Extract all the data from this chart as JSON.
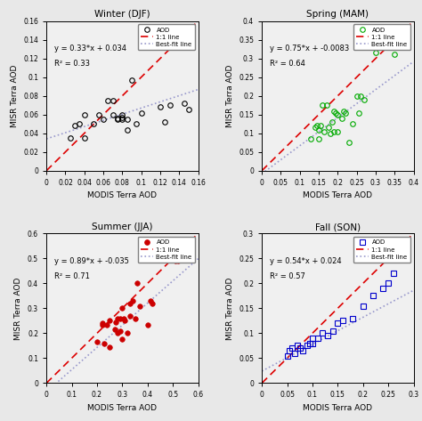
{
  "winter": {
    "title": "Winter (DJF)",
    "eq": "y = 0.33*x + 0.034",
    "r2": "R² = 0.33",
    "slope": 0.33,
    "intercept": 0.034,
    "xlim": [
      0,
      0.16
    ],
    "ylim": [
      0,
      0.16
    ],
    "xticks": [
      0,
      0.02,
      0.04,
      0.06,
      0.08,
      0.1,
      0.12,
      0.14,
      0.16
    ],
    "yticks": [
      0,
      0.02,
      0.04,
      0.06,
      0.08,
      0.1,
      0.12,
      0.14,
      0.16
    ],
    "color": "#000000",
    "marker": "o",
    "filled": false,
    "x": [
      0.025,
      0.03,
      0.035,
      0.04,
      0.04,
      0.05,
      0.055,
      0.06,
      0.065,
      0.07,
      0.07,
      0.075,
      0.075,
      0.08,
      0.08,
      0.08,
      0.085,
      0.085,
      0.09,
      0.095,
      0.1,
      0.12,
      0.125,
      0.13,
      0.145,
      0.15
    ],
    "y": [
      0.035,
      0.048,
      0.05,
      0.035,
      0.06,
      0.05,
      0.06,
      0.055,
      0.075,
      0.06,
      0.075,
      0.055,
      0.056,
      0.057,
      0.06,
      0.055,
      0.055,
      0.044,
      0.097,
      0.05,
      0.062,
      0.068,
      0.052,
      0.07,
      0.072,
      0.065
    ]
  },
  "spring": {
    "title": "Spring (MAM)",
    "eq": "y = 0.75*x + -0.0083",
    "r2": "R² = 0.64",
    "slope": 0.75,
    "intercept": -0.0083,
    "xlim": [
      0,
      0.4
    ],
    "ylim": [
      0,
      0.4
    ],
    "xticks": [
      0,
      0.05,
      0.1,
      0.15,
      0.2,
      0.25,
      0.3,
      0.35,
      0.4
    ],
    "yticks": [
      0,
      0.05,
      0.1,
      0.15,
      0.2,
      0.25,
      0.3,
      0.35,
      0.4
    ],
    "color": "#00aa00",
    "marker": "o",
    "filled": false,
    "x": [
      0.13,
      0.14,
      0.145,
      0.15,
      0.15,
      0.155,
      0.16,
      0.165,
      0.17,
      0.175,
      0.18,
      0.185,
      0.19,
      0.19,
      0.195,
      0.2,
      0.2,
      0.21,
      0.215,
      0.22,
      0.23,
      0.24,
      0.25,
      0.255,
      0.26,
      0.27,
      0.3,
      0.35
    ],
    "y": [
      0.085,
      0.115,
      0.12,
      0.085,
      0.11,
      0.12,
      0.175,
      0.105,
      0.175,
      0.115,
      0.1,
      0.13,
      0.105,
      0.16,
      0.155,
      0.105,
      0.15,
      0.14,
      0.16,
      0.155,
      0.075,
      0.125,
      0.2,
      0.155,
      0.2,
      0.19,
      0.315,
      0.31
    ]
  },
  "summer": {
    "title": "Summer (JJA)",
    "eq": "y = 0.89*x + -0.035",
    "r2": "R² = 0.71",
    "slope": 0.89,
    "intercept": -0.035,
    "xlim": [
      0,
      0.6
    ],
    "ylim": [
      0,
      0.6
    ],
    "xticks": [
      0,
      0.1,
      0.2,
      0.3,
      0.4,
      0.5,
      0.6
    ],
    "yticks": [
      0,
      0.1,
      0.2,
      0.3,
      0.4,
      0.5,
      0.6
    ],
    "color": "#cc0000",
    "marker": "o",
    "filled": true,
    "x": [
      0.2,
      0.22,
      0.22,
      0.23,
      0.24,
      0.25,
      0.25,
      0.27,
      0.275,
      0.28,
      0.28,
      0.29,
      0.29,
      0.3,
      0.3,
      0.305,
      0.31,
      0.32,
      0.33,
      0.33,
      0.34,
      0.35,
      0.36,
      0.37,
      0.4,
      0.41,
      0.42,
      0.51,
      0.52
    ],
    "y": [
      0.165,
      0.235,
      0.24,
      0.16,
      0.235,
      0.145,
      0.25,
      0.215,
      0.245,
      0.2,
      0.26,
      0.26,
      0.21,
      0.175,
      0.3,
      0.26,
      0.25,
      0.2,
      0.32,
      0.27,
      0.33,
      0.26,
      0.4,
      0.31,
      0.235,
      0.33,
      0.32,
      0.49,
      0.49
    ]
  },
  "fall": {
    "title": "Fall (SON)",
    "eq": "y = 0.54*x + 0.024",
    "r2": "R² = 0.57",
    "slope": 0.54,
    "intercept": 0.024,
    "xlim": [
      0,
      0.3
    ],
    "ylim": [
      0,
      0.3
    ],
    "xticks": [
      0,
      0.05,
      0.1,
      0.15,
      0.2,
      0.25,
      0.3
    ],
    "yticks": [
      0,
      0.05,
      0.1,
      0.15,
      0.2,
      0.25,
      0.3
    ],
    "color": "#0000cc",
    "marker": "s",
    "filled": false,
    "x": [
      0.05,
      0.055,
      0.06,
      0.065,
      0.07,
      0.075,
      0.08,
      0.09,
      0.095,
      0.1,
      0.1,
      0.11,
      0.12,
      0.13,
      0.14,
      0.15,
      0.16,
      0.18,
      0.2,
      0.22,
      0.24,
      0.25,
      0.26
    ],
    "y": [
      0.055,
      0.065,
      0.07,
      0.06,
      0.075,
      0.07,
      0.065,
      0.075,
      0.08,
      0.08,
      0.09,
      0.09,
      0.1,
      0.095,
      0.105,
      0.12,
      0.125,
      0.13,
      0.155,
      0.175,
      0.19,
      0.2,
      0.22
    ]
  },
  "bg_color": "#f0f0f0",
  "bestfit_color": "#9999cc",
  "one2one_color": "#dd0000"
}
